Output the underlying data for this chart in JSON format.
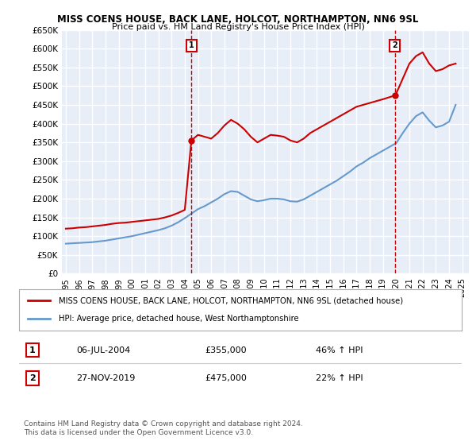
{
  "title": "MISS COENS HOUSE, BACK LANE, HOLCOT, NORTHAMPTON, NN6 9SL",
  "subtitle": "Price paid vs. HM Land Registry's House Price Index (HPI)",
  "legend_line1": "MISS COENS HOUSE, BACK LANE, HOLCOT, NORTHAMPTON, NN6 9SL (detached house)",
  "legend_line2": "HPI: Average price, detached house, West Northamptonshire",
  "annotation1_label": "1",
  "annotation1_date": "06-JUL-2004",
  "annotation1_price": "£355,000",
  "annotation1_hpi": "46% ↑ HPI",
  "annotation2_label": "2",
  "annotation2_date": "27-NOV-2019",
  "annotation2_price": "£475,000",
  "annotation2_hpi": "22% ↑ HPI",
  "footnote": "Contains HM Land Registry data © Crown copyright and database right 2024.\nThis data is licensed under the Open Government Licence v3.0.",
  "ylim": [
    0,
    650000
  ],
  "yticks": [
    0,
    50000,
    100000,
    150000,
    200000,
    250000,
    300000,
    350000,
    400000,
    450000,
    500000,
    550000,
    600000,
    650000
  ],
  "ytick_labels": [
    "£0",
    "£50K",
    "£100K",
    "£150K",
    "£200K",
    "£250K",
    "£300K",
    "£350K",
    "£400K",
    "£450K",
    "£500K",
    "£550K",
    "£600K",
    "£650K"
  ],
  "red_color": "#cc0000",
  "blue_color": "#6699cc",
  "bg_color": "#e8eef8",
  "grid_color": "#ffffff",
  "sale1_x": 2004.5,
  "sale1_y": 355000,
  "sale2_x": 2019.9,
  "sale2_y": 475000,
  "red_x": [
    1995,
    1995.5,
    1996,
    1996.5,
    1997,
    1997.5,
    1998,
    1998.5,
    1999,
    1999.5,
    2000,
    2000.5,
    2001,
    2001.5,
    2002,
    2002.5,
    2003,
    2003.5,
    2004,
    2004.5,
    2005,
    2005.5,
    2006,
    2006.5,
    2007,
    2007.5,
    2008,
    2008.5,
    2009,
    2009.5,
    2010,
    2010.5,
    2011,
    2011.5,
    2012,
    2012.5,
    2013,
    2013.5,
    2014,
    2014.5,
    2015,
    2015.5,
    2016,
    2016.5,
    2017,
    2017.5,
    2018,
    2018.5,
    2019,
    2019.9,
    2020,
    2020.5,
    2021,
    2021.5,
    2022,
    2022.5,
    2023,
    2023.5,
    2024,
    2024.5
  ],
  "red_y": [
    120000,
    121000,
    123000,
    124000,
    126000,
    128000,
    130000,
    133000,
    135000,
    136000,
    138000,
    140000,
    142000,
    144000,
    146000,
    150000,
    155000,
    162000,
    170000,
    355000,
    370000,
    365000,
    360000,
    375000,
    395000,
    410000,
    400000,
    385000,
    365000,
    350000,
    360000,
    370000,
    368000,
    365000,
    355000,
    350000,
    360000,
    375000,
    385000,
    395000,
    405000,
    415000,
    425000,
    435000,
    445000,
    450000,
    455000,
    460000,
    465000,
    475000,
    480000,
    520000,
    560000,
    580000,
    590000,
    560000,
    540000,
    545000,
    555000,
    560000
  ],
  "blue_x": [
    1995,
    1995.5,
    1996,
    1996.5,
    1997,
    1997.5,
    1998,
    1998.5,
    1999,
    1999.5,
    2000,
    2000.5,
    2001,
    2001.5,
    2002,
    2002.5,
    2003,
    2003.5,
    2004,
    2004.5,
    2005,
    2005.5,
    2006,
    2006.5,
    2007,
    2007.5,
    2008,
    2008.5,
    2009,
    2009.5,
    2010,
    2010.5,
    2011,
    2011.5,
    2012,
    2012.5,
    2013,
    2013.5,
    2014,
    2014.5,
    2015,
    2015.5,
    2016,
    2016.5,
    2017,
    2017.5,
    2018,
    2018.5,
    2019,
    2019.5,
    2020,
    2020.5,
    2021,
    2021.5,
    2022,
    2022.5,
    2023,
    2023.5,
    2024,
    2024.5
  ],
  "blue_y": [
    80000,
    81000,
    82000,
    83000,
    84000,
    86000,
    88000,
    91000,
    94000,
    97000,
    100000,
    104000,
    108000,
    112000,
    116000,
    121000,
    128000,
    137000,
    148000,
    160000,
    172000,
    180000,
    190000,
    200000,
    212000,
    220000,
    218000,
    208000,
    198000,
    193000,
    196000,
    200000,
    200000,
    198000,
    193000,
    192000,
    198000,
    208000,
    218000,
    228000,
    238000,
    248000,
    260000,
    272000,
    286000,
    296000,
    308000,
    318000,
    328000,
    338000,
    348000,
    375000,
    400000,
    420000,
    430000,
    408000,
    390000,
    395000,
    405000,
    450000
  ],
  "xtick_years": [
    1995,
    1996,
    1997,
    1998,
    1999,
    2000,
    2001,
    2002,
    2003,
    2004,
    2005,
    2006,
    2007,
    2008,
    2009,
    2010,
    2011,
    2012,
    2013,
    2014,
    2015,
    2016,
    2017,
    2018,
    2019,
    2020,
    2021,
    2022,
    2023,
    2024,
    2025
  ]
}
